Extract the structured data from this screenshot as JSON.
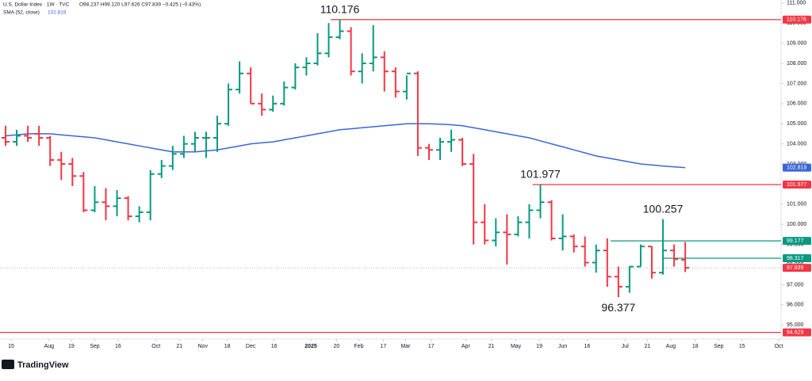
{
  "header": {
    "title": "U.S. Dollar Index · 1W · TVC",
    "quote": "O98.237 H99.120 L97.626 C97.839 −0.425 (−0.43%)",
    "indicator": "SMA (52, close)",
    "indicator_value": "102.819"
  },
  "footer": {
    "brand": "TradingView"
  },
  "chart_data": {
    "type": "ohlc",
    "categories": [
      null,
      null,
      null,
      null,
      null,
      null,
      null,
      null,
      null,
      null,
      null,
      null,
      null,
      null,
      null,
      null,
      null,
      null,
      null,
      null,
      null,
      null,
      null,
      null,
      null,
      null,
      null,
      null,
      null,
      null,
      null,
      null,
      null,
      null,
      null,
      null,
      null,
      null,
      null,
      null,
      null,
      null,
      null,
      null,
      null,
      null,
      null,
      null,
      null,
      null,
      null,
      null,
      null,
      null,
      null,
      null,
      null,
      null,
      null,
      null,
      null,
      null
    ],
    "up_color": "#089981",
    "down_color": "#f23645",
    "series": [
      {
        "name": "U.S. Dollar Index",
        "open": [
          104.3,
          104.1,
          104.4,
          104.5,
          104.3,
          103.2,
          103.0,
          102.4,
          100.7,
          101.1,
          100.9,
          101.3,
          100.4,
          100.6,
          102.5,
          102.9,
          103.5,
          104.0,
          104.3,
          104.3,
          105.0,
          106.7,
          107.5,
          106.0,
          105.7,
          106.0,
          106.8,
          107.8,
          108.0,
          108.5,
          109.3,
          109.6,
          107.6,
          108.0,
          108.3,
          107.6,
          106.6,
          107.5,
          103.8,
          103.7,
          104.1,
          104.2,
          103.0,
          100.1,
          99.2,
          99.6,
          99.5,
          100.1,
          100.7,
          101.1,
          99.3,
          99.4,
          98.9,
          98.1,
          98.7,
          97.4,
          96.9,
          97.9,
          98.9,
          97.6,
          98.7,
          98.237
        ],
        "high": [
          104.9,
          104.7,
          104.9,
          104.9,
          104.4,
          103.6,
          103.3,
          102.6,
          101.9,
          101.8,
          101.7,
          101.4,
          100.9,
          102.7,
          103.2,
          103.9,
          104.4,
          104.6,
          104.6,
          105.4,
          107.0,
          108.1,
          107.8,
          106.5,
          106.4,
          107.1,
          108.0,
          108.3,
          109.5,
          110.0,
          110.176,
          109.8,
          108.5,
          109.9,
          108.6,
          107.8,
          107.4,
          107.6,
          104.0,
          104.3,
          104.7,
          104.3,
          103.5,
          101.0,
          100.3,
          100.5,
          100.4,
          101.0,
          101.977,
          101.2,
          100.5,
          99.5,
          99.4,
          99.0,
          99.3,
          97.9,
          97.9,
          99.0,
          98.9,
          100.257,
          99.0,
          99.12
        ],
        "low": [
          103.9,
          103.9,
          104.1,
          103.9,
          102.9,
          102.2,
          101.9,
          100.6,
          100.6,
          100.2,
          100.4,
          100.2,
          100.1,
          100.2,
          102.3,
          102.7,
          103.3,
          103.6,
          103.3,
          103.6,
          104.9,
          106.5,
          106.0,
          105.4,
          105.6,
          105.9,
          106.7,
          107.4,
          107.9,
          108.3,
          109.2,
          107.4,
          107.0,
          107.6,
          106.6,
          106.3,
          106.2,
          103.4,
          103.2,
          103.2,
          103.6,
          102.9,
          99.0,
          99.0,
          98.9,
          98.0,
          99.4,
          99.3,
          100.3,
          99.2,
          98.7,
          98.6,
          97.9,
          97.6,
          96.9,
          96.377,
          96.6,
          97.9,
          97.3,
          97.5,
          97.9,
          97.626
        ],
        "close": [
          104.1,
          104.4,
          104.3,
          104.3,
          103.2,
          103.0,
          102.4,
          100.7,
          101.1,
          100.9,
          101.3,
          100.4,
          100.6,
          102.5,
          102.9,
          103.5,
          104.0,
          104.3,
          104.3,
          105.0,
          106.7,
          107.5,
          106.0,
          105.7,
          106.0,
          106.8,
          107.8,
          108.0,
          108.5,
          109.3,
          109.6,
          107.6,
          108.0,
          108.3,
          107.6,
          106.6,
          107.5,
          103.8,
          103.7,
          104.1,
          104.2,
          103.0,
          100.1,
          99.2,
          99.6,
          99.5,
          100.1,
          100.7,
          101.1,
          99.3,
          99.4,
          98.9,
          98.1,
          98.7,
          97.4,
          96.9,
          97.9,
          98.9,
          97.6,
          98.7,
          98.264,
          97.839
        ]
      },
      {
        "name": "SMA (52, close)",
        "color": "#3a66d6",
        "values": [
          104.4,
          104.45,
          104.5,
          104.5,
          104.5,
          104.45,
          104.4,
          104.35,
          104.3,
          104.2,
          104.1,
          104.0,
          103.9,
          103.8,
          103.7,
          103.6,
          103.6,
          103.6,
          103.65,
          103.7,
          103.8,
          103.9,
          104.0,
          104.05,
          104.1,
          104.2,
          104.3,
          104.4,
          104.5,
          104.6,
          104.7,
          104.75,
          104.8,
          104.85,
          104.9,
          104.95,
          105.0,
          105.0,
          105.0,
          104.98,
          104.95,
          104.9,
          104.8,
          104.7,
          104.6,
          104.5,
          104.4,
          104.3,
          104.15,
          104.0,
          103.85,
          103.7,
          103.55,
          103.4,
          103.3,
          103.2,
          103.1,
          103.0,
          102.95,
          102.9,
          102.86,
          102.819
        ]
      }
    ],
    "levels": [
      {
        "value": 110.176,
        "color": "#f23645"
      },
      {
        "value": 101.977,
        "color": "#f23645"
      },
      {
        "value": 99.177,
        "color": "#089981"
      },
      {
        "value": 98.317,
        "color": "#089981"
      },
      {
        "value": 94.629,
        "color": "#f23645"
      }
    ],
    "annotations": [
      110.176,
      101.977,
      100.257,
      96.377
    ],
    "price_tags": [
      {
        "value": 110.176,
        "color": "#f23645"
      },
      {
        "value": 102.819,
        "color": "#3a66d6"
      },
      {
        "value": 101.977,
        "color": "#f23645"
      },
      {
        "value": 99.177,
        "color": "#089981"
      },
      {
        "value": 98.317,
        "color": "#089981"
      },
      {
        "value": 97.839,
        "color": "#f23645"
      },
      {
        "value": 94.629,
        "color": "#f23645"
      }
    ],
    "ylim": [
      94.3,
      111.15
    ],
    "yticks": [
      {
        "value": 111,
        "label": "111.000"
      },
      {
        "value": 110,
        "label": "110.000"
      },
      {
        "value": 109,
        "label": "109.000"
      },
      {
        "value": 108,
        "label": "108.000"
      },
      {
        "value": 107,
        "label": "107.000"
      },
      {
        "value": 106,
        "label": "106.000"
      },
      {
        "value": 105,
        "label": "105.000"
      },
      {
        "value": 104,
        "label": "104.000"
      },
      {
        "value": 103,
        "label": "103.000"
      },
      {
        "value": 102,
        "label": "102.000"
      },
      {
        "value": 101,
        "label": "101.000"
      },
      {
        "value": 100,
        "label": "100.000"
      },
      {
        "value": 99,
        "label": "99.000"
      },
      {
        "value": 98,
        "label": "98.000"
      },
      {
        "value": 97,
        "label": "97.000"
      },
      {
        "value": 96,
        "label": "96.000"
      },
      {
        "value": 95,
        "label": "95.000"
      }
    ],
    "xlim": [
      -0.5,
      69.6
    ],
    "xticks": [
      {
        "value": 0.5,
        "label": "15"
      },
      {
        "value": 3.9,
        "label": "Aug"
      },
      {
        "value": 5.9,
        "label": "19"
      },
      {
        "value": 8.0,
        "label": "Sep"
      },
      {
        "value": 10.1,
        "label": "16"
      },
      {
        "value": 13.5,
        "label": "Oct"
      },
      {
        "value": 15.6,
        "label": "21"
      },
      {
        "value": 17.7,
        "label": "Nov"
      },
      {
        "value": 19.9,
        "label": "18"
      },
      {
        "value": 22.0,
        "label": "Dec"
      },
      {
        "value": 24.1,
        "label": "16"
      },
      {
        "value": 27.4,
        "label": "2025"
      },
      {
        "value": 29.7,
        "label": "20"
      },
      {
        "value": 31.7,
        "label": "Feb"
      },
      {
        "value": 33.9,
        "label": "17"
      },
      {
        "value": 35.9,
        "label": "Mar"
      },
      {
        "value": 38.2,
        "label": "17"
      },
      {
        "value": 41.3,
        "label": "Apr"
      },
      {
        "value": 43.6,
        "label": "21"
      },
      {
        "value": 45.8,
        "label": "May"
      },
      {
        "value": 47.9,
        "label": "19"
      },
      {
        "value": 50.0,
        "label": "Jun"
      },
      {
        "value": 52.2,
        "label": "16"
      },
      {
        "value": 55.6,
        "label": "Jul"
      },
      {
        "value": 57.6,
        "label": "21"
      },
      {
        "value": 59.7,
        "label": "Aug"
      },
      {
        "value": 61.9,
        "label": "18"
      },
      {
        "value": 64.0,
        "label": "Sep"
      },
      {
        "value": 66.1,
        "label": "15"
      },
      {
        "value": 69.4,
        "label": "Oct"
      }
    ]
  }
}
